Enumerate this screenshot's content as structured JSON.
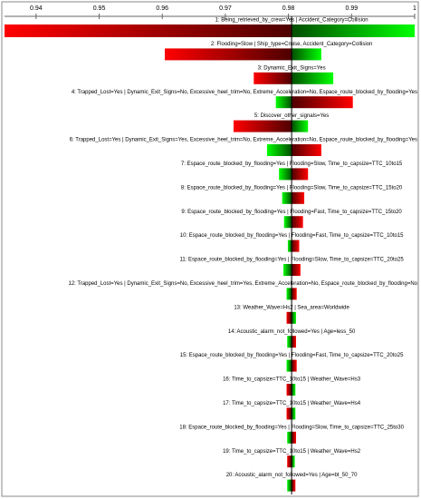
{
  "chart_data": {
    "type": "tornado",
    "categories": [
      "1: Being_retrieved_by_crew=Yes | Accident_Category=Collision",
      "2: Flooding=Slow | Ship_type=Cruise, Accident_Category=Collision",
      "3: Dynamic_Exit_Signs=Yes",
      "4: Trapped_Lost=Yes | Dynamic_Exit_Signs=No, Excessive_heel_trim=No, Extreme_Acceleration=No, Espace_route_blocked_by_flooding=Yes",
      "5: Discover_other_signals=Yes",
      "6: Trapped_Lost=Yes | Dynamic_Exit_Signs=Yes, Excessive_heel_trim=No, Extreme_Acceleration=No, Espace_route_blocked_by_flooding=Yes",
      "7: Espace_route_blocked_by_flooding=Yes | Flooding=Slow, Time_to_capsize=TTC_10to15",
      "8: Espace_route_blocked_by_flooding=Yes | Flooding=Slow, Time_to_capsize=TTC_15to20",
      "9: Espace_route_blocked_by_flooding=Yes | Flooding=Fast, Time_to_capsize=TTC_15to20",
      "10: Espace_route_blocked_by_flooding=Yes | Flooding=Fast, Time_to_capsize=TTC_10to15",
      "11: Espace_route_blocked_by_flooding=Yes | Flooding=Slow, Time_to_capsize=TTC_20to25",
      "12: Trapped_Lost=Yes | Dynamic_Exit_Signs=No, Excessive_heel_trim=Yes, Extreme_Acceleration=No, Espace_route_blocked_by_flooding=No",
      "13: Weather_Wave=Hs2 | Sea_area=Worldwide",
      "14: Acoustic_alarm_not_followed=Yes | Age=less_50",
      "15: Espace_route_blocked_by_flooding=Yes | Flooding=Fast, Time_to_capsize=TTC_20to25",
      "16: Time_to_capsize=TTC_10to15 | Weather_Wave=Hs3",
      "17: Time_to_capsize=TTC_10to15 | Weather_Wave=Hs4",
      "18: Espace_route_blocked_by_flooding=Yes | Flooding=Slow, Time_to_capsize=TTC_25to30",
      "19: Time_to_capsize=TTC_10to15 | Weather_Wave=Hs2",
      "20: Acoustic_alarm_not_followed=Yes | Age=bt_50_70"
    ],
    "series": [
      {
        "color": "#ff0000",
        "values": [
          0.935,
          0.9604,
          0.9745,
          0.9902,
          0.9713,
          0.9852,
          0.9831,
          0.9825,
          0.9823,
          0.9817,
          0.9819,
          0.9813,
          0.9797,
          0.9812,
          0.9813,
          0.9797,
          0.9797,
          0.9812,
          0.9798,
          0.9811
        ]
      },
      {
        "color": "#00ff00",
        "values": [
          1.0,
          0.9852,
          0.9871,
          0.978,
          0.9831,
          0.9766,
          0.9785,
          0.979,
          0.9793,
          0.9799,
          0.9792,
          0.9797,
          0.9812,
          0.9798,
          0.9797,
          0.9811,
          0.9811,
          0.9798,
          0.981,
          0.9798
        ]
      }
    ],
    "baseline": 0.9805,
    "xlim": [
      0.935,
      1
    ],
    "xticks": [
      0.94,
      0.95,
      0.96,
      0.97,
      0.98,
      0.99,
      1
    ]
  }
}
